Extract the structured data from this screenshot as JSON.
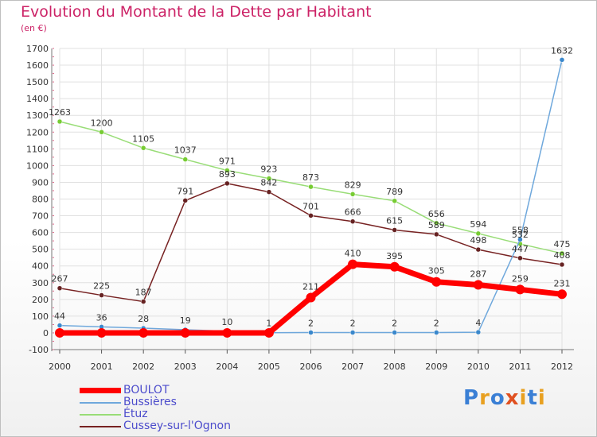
{
  "chart_data": {
    "type": "line",
    "title": "Evolution du Montant de la Dette par Habitant",
    "subtitle": "(en €)",
    "xlabel": "",
    "ylabel": "",
    "x": [
      "2000",
      "2001",
      "2002",
      "2003",
      "2004",
      "2005",
      "2006",
      "2007",
      "2008",
      "2009",
      "2010",
      "2011",
      "2012"
    ],
    "ylim": [
      -100,
      1700
    ],
    "yticks": [
      -100,
      0,
      100,
      200,
      300,
      400,
      500,
      600,
      700,
      800,
      900,
      1000,
      1100,
      1200,
      1300,
      1400,
      1500,
      1600,
      1700
    ],
    "grid": true,
    "legend_position": "bottom-left",
    "series": [
      {
        "name": "BOULOT",
        "color": "#ff0000",
        "values": [
          0,
          0,
          0,
          0,
          0,
          0,
          211,
          410,
          395,
          305,
          287,
          259,
          231
        ],
        "labels": [
          "",
          "",
          "",
          "",
          "",
          "",
          "211",
          "410",
          "395",
          "305",
          "287",
          "259",
          "231"
        ]
      },
      {
        "name": "Bussières",
        "color": "#6fa8dc",
        "values": [
          44,
          36,
          28,
          19,
          10,
          1,
          2,
          2,
          2,
          2,
          4,
          558,
          1632
        ],
        "labels": [
          "44",
          "36",
          "28",
          "19",
          "10",
          "1",
          "2",
          "2",
          "2",
          "2",
          "4",
          "558",
          "1632"
        ]
      },
      {
        "name": "Étuz",
        "color": "#99dd77",
        "values": [
          1263,
          1200,
          1105,
          1037,
          971,
          923,
          873,
          829,
          789,
          656,
          594,
          532,
          475
        ],
        "labels": [
          "1263",
          "1200",
          "1105",
          "1037",
          "971",
          "923",
          "873",
          "829",
          "789",
          "656",
          "594",
          "532",
          "475"
        ]
      },
      {
        "name": "Cussey-sur-l'Ognon",
        "color": "#772222",
        "values": [
          267,
          225,
          187,
          791,
          893,
          842,
          701,
          666,
          615,
          589,
          498,
          447,
          408
        ],
        "labels": [
          "267",
          "225",
          "187",
          "791",
          "893",
          "842",
          "701",
          "666",
          "615",
          "589",
          "498",
          "447",
          "408"
        ]
      }
    ]
  },
  "logo": {
    "letters": [
      "P",
      "r",
      "o",
      "x",
      "i",
      "t",
      "i"
    ],
    "colors": [
      "#3a7fd5",
      "#e8a020",
      "#3a7fd5",
      "#e05020",
      "#e8a020",
      "#3a7fd5",
      "#e8a020"
    ]
  }
}
